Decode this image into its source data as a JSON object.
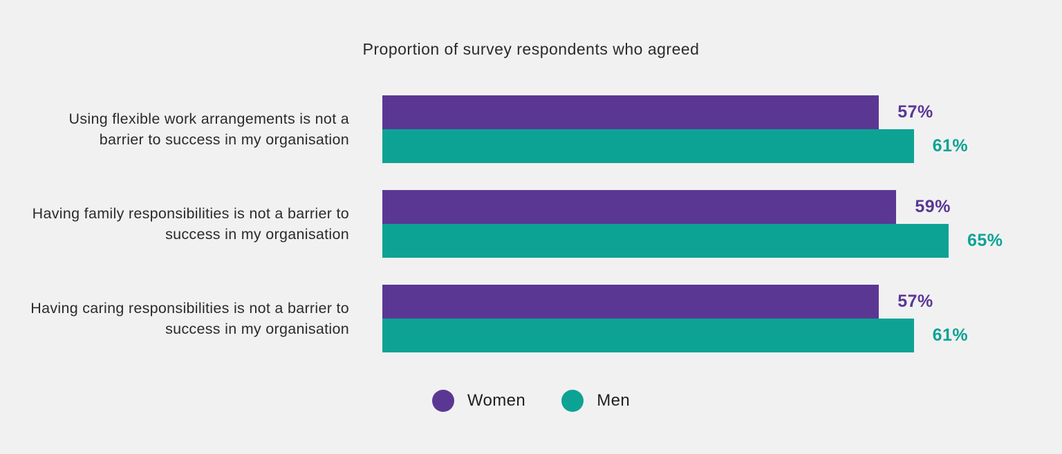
{
  "title": "Proportion of survey respondents who agreed",
  "colors": {
    "women": "#5b3794",
    "men": "#0da394",
    "background": "#f1f1f2",
    "text": "#2b2b2b"
  },
  "legend": {
    "women_label": "Women",
    "men_label": "Men"
  },
  "chart_data": {
    "type": "bar",
    "orientation": "horizontal",
    "title": "Proportion of survey respondents who agreed",
    "categories": [
      "Using flexible work arrangements is not a barrier to success in my organisation",
      "Having family responsibilities is not a barrier to success in my organisation",
      "Having caring responsibilities is not a barrier to success in my organisation"
    ],
    "series": [
      {
        "name": "Women",
        "color": "#5b3794",
        "values": [
          57,
          59,
          57
        ],
        "labels": [
          "57%",
          "59%",
          "57%"
        ]
      },
      {
        "name": "Men",
        "color": "#0da394",
        "values": [
          61,
          65,
          61
        ],
        "labels": [
          "61%",
          "65%",
          "61%"
        ]
      }
    ],
    "value_unit": "%",
    "xlim": [
      0,
      65
    ],
    "grid": false,
    "legend_position": "bottom"
  }
}
